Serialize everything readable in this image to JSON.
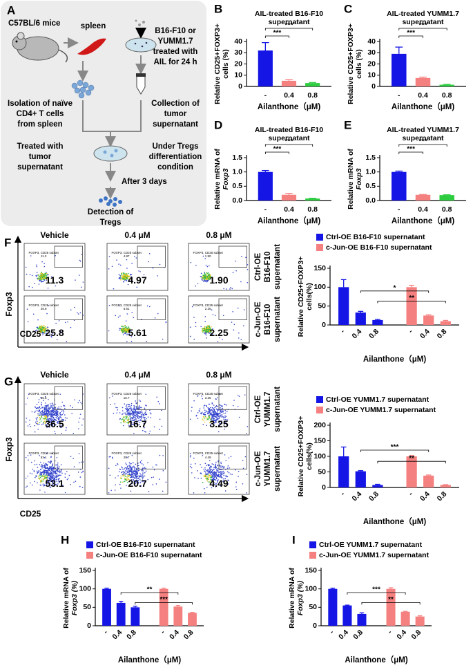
{
  "panel_A": {
    "letter": "A",
    "mice": "C57BL/6 mice",
    "spleen": "spleen",
    "tumor_treatment": [
      "B16-F10 or",
      "YUMM1.7",
      "treated with",
      "AIL for 24 h"
    ],
    "isolation": [
      "Isolation of naïve",
      "CD4+ T cells",
      "from spleen"
    ],
    "collection": [
      "Collection of",
      "tumor",
      "supernatant"
    ],
    "treated": [
      "Treated with",
      "tumor",
      "supernatant"
    ],
    "condition": [
      "Under Tregs",
      "differentiation",
      "condition"
    ],
    "days": "After 3 days",
    "detection": [
      "Detection of",
      "Tregs"
    ]
  },
  "flow_panels": [
    {
      "letter": "F",
      "columns": [
        "Vehicle",
        "0.4 μM",
        "0.8 μM"
      ],
      "rows": [
        {
          "label": [
            "Ctrl-OE",
            "B16-F10",
            "supernatant"
          ],
          "gates": [
            "11.3",
            "4.97",
            "1.90"
          ]
        },
        {
          "label": [
            "c-Jun-OE",
            "B16-F10",
            "supernatant"
          ],
          "gates": [
            "25.8",
            "5.61",
            "2.25"
          ]
        }
      ],
      "gate_name": "FOXP3, CD25 subset",
      "y_axis": "Foxp3",
      "x_axis": "CD25"
    },
    {
      "letter": "G",
      "columns": [
        "Vehicle",
        "0.4 μM",
        "0.8 μM"
      ],
      "rows": [
        {
          "label": [
            "Ctrl-OE",
            "YUMM1.7",
            "supernatant"
          ],
          "gates": [
            "36.5",
            "16.7",
            "3.25"
          ]
        },
        {
          "label": [
            "c-Jun-OE",
            "YUMM1.7",
            "supernatant"
          ],
          "gates": [
            "53.1",
            "20.7",
            "4.49"
          ]
        }
      ],
      "gate_name": "FOXP3, CD25 subset",
      "y_axis": "Foxp3",
      "x_axis": "CD25"
    }
  ],
  "chart_data": [
    {
      "type": "bar",
      "panel": "B",
      "title": [
        "AIL-treated B16-F10",
        "supernatant"
      ],
      "y_label": [
        "Relative CD25+FOXP3+",
        "cells (%)"
      ],
      "x_label": "Ailanthone（μM)",
      "categories": [
        "-",
        "0.4",
        "0.8"
      ],
      "series": [
        {
          "colors": [
            "#1515e6",
            "#f48080",
            "#2ecc40"
          ],
          "values": [
            32,
            5,
            3
          ],
          "errors": [
            7,
            1,
            0.5
          ]
        }
      ],
      "ylim": [
        0,
        40
      ],
      "yticks": [
        0,
        10,
        20,
        30,
        40
      ],
      "significance": [
        "***",
        "***"
      ]
    },
    {
      "type": "bar",
      "panel": "C",
      "title": [
        "AIL-treated YUMM1.7",
        "supernatant"
      ],
      "y_label": [
        "Relative CD25+FOXP3+",
        "cells (%)"
      ],
      "x_label": "Ailanthone（μM)",
      "categories": [
        "-",
        "0.4",
        "0.8"
      ],
      "series": [
        {
          "colors": [
            "#1515e6",
            "#f48080",
            "#2ecc40"
          ],
          "values": [
            29,
            7.5,
            1.5
          ],
          "errors": [
            6,
            0.8,
            0.3
          ]
        }
      ],
      "ylim": [
        0,
        40
      ],
      "yticks": [
        0,
        10,
        20,
        30,
        40
      ],
      "significance": [
        "***",
        "***"
      ]
    },
    {
      "type": "bar",
      "panel": "D",
      "title": [
        "AIL-treated B16-F10",
        "supernatant"
      ],
      "y_label": [
        "Relative mRNA of",
        "Foxp3"
      ],
      "x_label": "Ailanthone（μM)",
      "categories": [
        "-",
        "0.4",
        "0.8"
      ],
      "series": [
        {
          "colors": [
            "#1515e6",
            "#f48080",
            "#2ecc40"
          ],
          "values": [
            1.0,
            0.2,
            0.07
          ],
          "errors": [
            0.05,
            0.05,
            0.01
          ]
        }
      ],
      "ylim": [
        0,
        1.5
      ],
      "yticks": [
        {
          "value": 0,
          "label": "0.0"
        },
        0.5,
        {
          "value": 1,
          "label": "1.0"
        },
        1.5
      ],
      "significance": [
        "***",
        "***"
      ]
    },
    {
      "type": "bar",
      "panel": "E",
      "title": [
        "AIL-treated YUMM1.7",
        "supernatant"
      ],
      "y_label": [
        "Relative mRNA of",
        "Foxp3"
      ],
      "x_label": "Ailanthone（μM)",
      "categories": [
        "-",
        "0.4",
        "0.8"
      ],
      "series": [
        {
          "colors": [
            "#1515e6",
            "#f48080",
            "#2ecc40"
          ],
          "values": [
            1.0,
            0.2,
            0.19
          ],
          "errors": [
            0.03,
            0.01,
            0.01
          ]
        }
      ],
      "ylim": [
        0,
        1.5
      ],
      "yticks": [
        {
          "value": 0,
          "label": "0.0"
        },
        0.5,
        {
          "value": 1,
          "label": "1.0"
        },
        1.5
      ],
      "significance": [
        "***",
        "***"
      ]
    },
    {
      "type": "bar",
      "y_label": [
        "Relative CD25+FOXP3+",
        "cells(%)"
      ],
      "x_label": "Ailanthone（μM)",
      "categories": [
        "-",
        "0.4",
        "0.8"
      ],
      "rotate_xticks": true,
      "series": [
        {
          "name": "Ctrl-OE B16-F10 supernatant",
          "color": "#1515e6",
          "values": [
            100,
            33,
            13
          ],
          "errors": [
            20,
            3,
            2
          ]
        },
        {
          "name": "c-Jun-OE B16-F10 supernatant",
          "color": "#f48080",
          "values": [
            100,
            25,
            10
          ],
          "errors": [
            5,
            2,
            2
          ]
        }
      ],
      "ylim": [
        0,
        150
      ],
      "yticks": [
        0,
        50,
        100,
        150
      ],
      "significance": [
        "*",
        "**"
      ]
    },
    {
      "type": "bar",
      "y_label": [
        "Relative CD25+FOXP3+",
        "cells(%)"
      ],
      "x_label": "Ailanthone（μM)",
      "categories": [
        "-",
        "0.4",
        "0.8"
      ],
      "rotate_xticks": true,
      "series": [
        {
          "name": "Ctrl-OE YUMM1.7 supernatant",
          "color": "#1515e6",
          "values": [
            100,
            52,
            8
          ],
          "errors": [
            30,
            2,
            2
          ]
        },
        {
          "name": "c-Jun-OE YUMM1.7 supernatant",
          "color": "#f48080",
          "values": [
            100,
            38,
            8
          ],
          "errors": [
            3,
            2,
            1
          ]
        }
      ],
      "ylim": [
        0,
        200
      ],
      "yticks": [
        0,
        50,
        100,
        150,
        200
      ],
      "significance": [
        "***",
        "**"
      ]
    },
    {
      "type": "bar",
      "panel": "H",
      "y_label": [
        "Relative mRNA of",
        "Foxp3 (%)"
      ],
      "x_label": "Ailanthone（μM)",
      "categories": [
        "-",
        "0.4",
        "0.8"
      ],
      "rotate_xticks": true,
      "series": [
        {
          "name": "Ctrl-OE B16-F10 supernatant",
          "color": "#1515e6",
          "values": [
            100,
            62,
            50
          ],
          "errors": [
            2,
            4,
            3
          ]
        },
        {
          "name": "c-Jun-OE B16-F10 supernatant",
          "color": "#f48080",
          "values": [
            100,
            52,
            35
          ],
          "errors": [
            2,
            3,
            1
          ]
        }
      ],
      "ylim": [
        0,
        150
      ],
      "yticks": [
        0,
        50,
        100,
        150
      ],
      "significance": [
        "**",
        "***"
      ]
    },
    {
      "type": "bar",
      "panel": "I",
      "y_label": [
        "Relative mRNA of",
        "Foxp3 (%)"
      ],
      "x_label": "Ailanthone（μM)",
      "categories": [
        "-",
        "0.4",
        "0.8"
      ],
      "rotate_xticks": true,
      "series": [
        {
          "name": "Ctrl-OE YUMM1.7 supernatant",
          "color": "#1515e6",
          "values": [
            100,
            55,
            32
          ],
          "errors": [
            2,
            1,
            3
          ]
        },
        {
          "name": "c-Jun-OE YUMM1.7 supernatant",
          "color": "#f48080",
          "values": [
            100,
            38,
            25
          ],
          "errors": [
            3,
            1,
            2
          ]
        }
      ],
      "ylim": [
        0,
        150
      ],
      "yticks": [
        0,
        50,
        100,
        150
      ],
      "significance": [
        "***",
        "**"
      ]
    }
  ]
}
